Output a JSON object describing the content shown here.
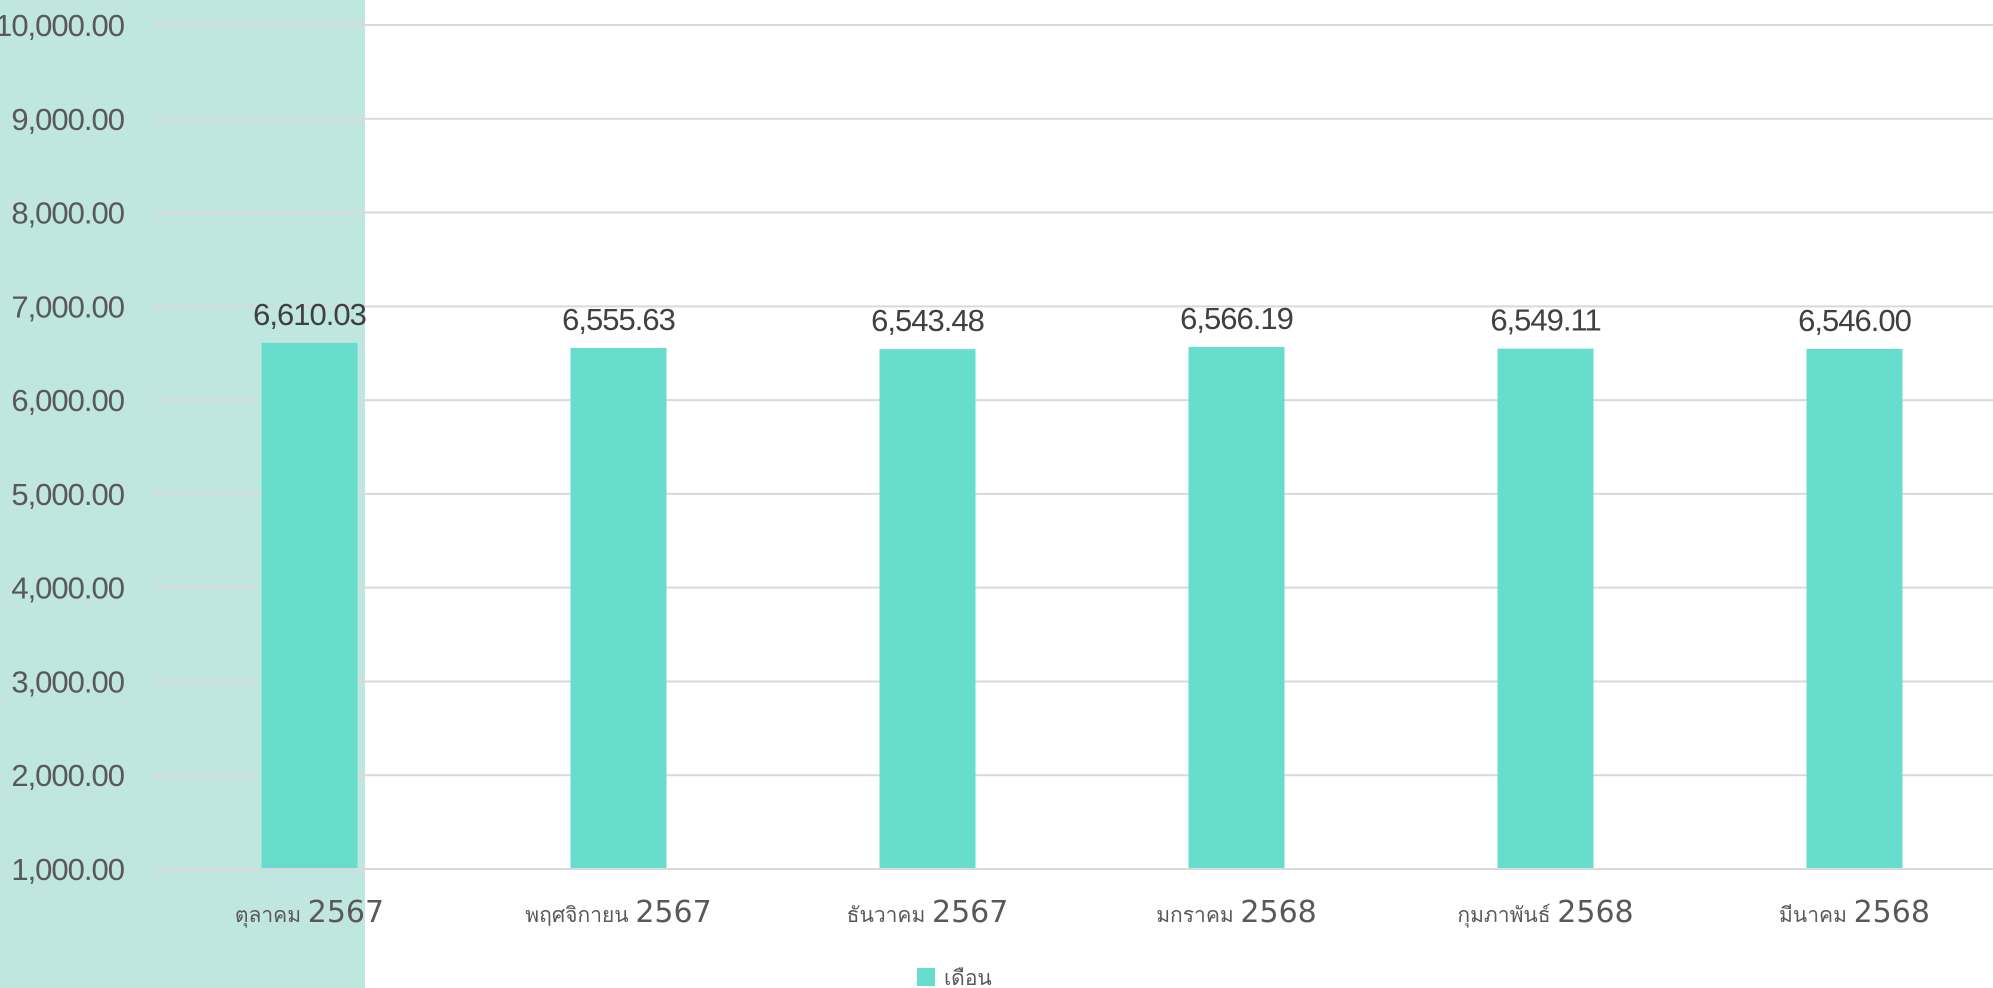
{
  "colors": {
    "bar": "#67DDCD",
    "highlight_band": "#BFE6DF",
    "gridline": "#D9D9D9",
    "text": "#595959"
  },
  "chart_data": {
    "type": "bar",
    "categories": [
      "ตุลาคม 2567",
      "พฤศจิกายน 2567",
      "ธันวาคม 2567",
      "มกราคม 2568",
      "กุมภาพันธ์ 2568",
      "มีนาคม 2568"
    ],
    "category_parts": [
      {
        "month": "ตุลาคม",
        "year": "2567"
      },
      {
        "month": "พฤศจิกายน",
        "year": "2567"
      },
      {
        "month": "ธันวาคม",
        "year": "2567"
      },
      {
        "month": "มกราคม",
        "year": "2568"
      },
      {
        "month": "กุมภาพันธ์",
        "year": "2568"
      },
      {
        "month": "มีนาคม",
        "year": "2568"
      }
    ],
    "series": [
      {
        "name": "เดือน",
        "values": [
          6610.03,
          6555.63,
          6543.48,
          6566.19,
          6549.11,
          6546.0
        ],
        "labels": [
          "6,610.03",
          "6,555.63",
          "6,543.48",
          "6,566.19",
          "6,549.11",
          "6,546.00"
        ]
      }
    ],
    "ylim": [
      1000,
      10000
    ],
    "y_ticks": [
      1000,
      2000,
      3000,
      4000,
      5000,
      6000,
      7000,
      8000,
      9000,
      10000
    ],
    "y_tick_labels": [
      "1,000.00",
      "2,000.00",
      "3,000.00",
      "4,000.00",
      "5,000.00",
      "6,000.00",
      "7,000.00",
      "8,000.00",
      "9,000.00",
      "10,000.00"
    ],
    "highlighted_category_index": 0,
    "grid": true,
    "legend_position": "bottom",
    "title": "",
    "xlabel": "",
    "ylabel": ""
  }
}
